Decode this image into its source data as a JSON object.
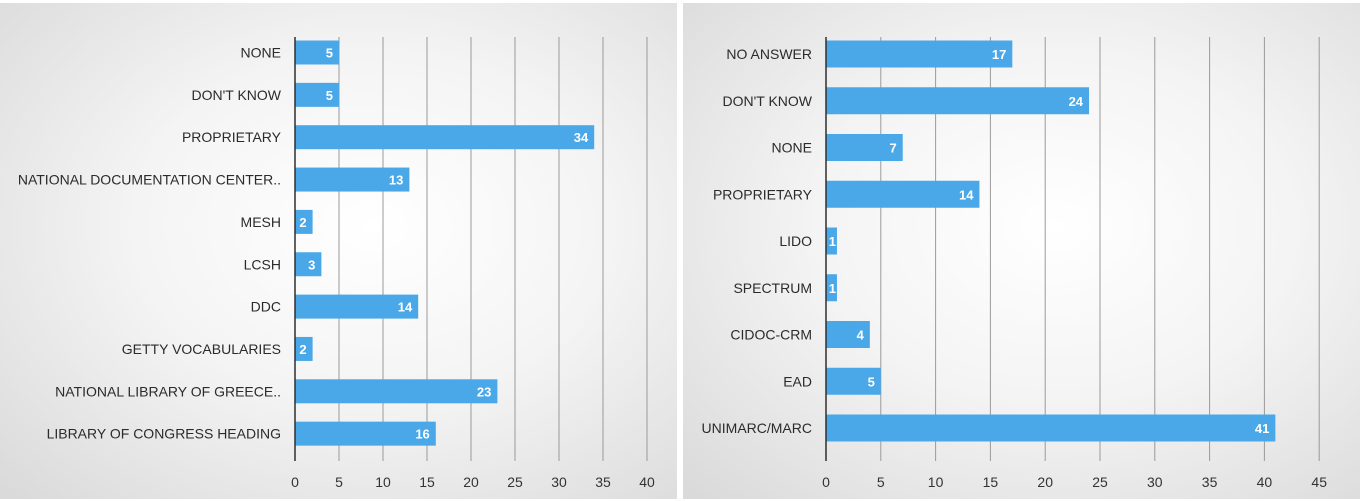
{
  "colors": {
    "bar": "#4aa8e8",
    "axis": "#2f2f2f",
    "grid": "#9a9a9a",
    "value_label": "#ffffff"
  },
  "chart_data": [
    {
      "type": "bar",
      "orientation": "horizontal",
      "title": "",
      "xlabel": "",
      "ylabel": "",
      "categories": [
        "NONE",
        "DON'T KNOW",
        "PROPRIETARY",
        "NATIONAL DOCUMENTATION CENTER..",
        "MESH",
        "LCSH",
        "DDC",
        "GETTY VOCABULARIES",
        "NATIONAL LIBRARY OF GREECE..",
        "LIBRARY OF CONGRESS HEADING"
      ],
      "values": [
        5,
        5,
        34,
        13,
        2,
        3,
        14,
        2,
        23,
        16
      ],
      "xlim": [
        0,
        40
      ],
      "xticks": [
        0,
        5,
        10,
        15,
        20,
        25,
        30,
        35,
        40
      ],
      "grid": true,
      "data_labels": true
    },
    {
      "type": "bar",
      "orientation": "horizontal",
      "title": "",
      "xlabel": "",
      "ylabel": "",
      "categories": [
        "NO ANSWER",
        "DON'T KNOW",
        "NONE",
        "PROPRIETARY",
        "LIDO",
        "SPECTRUM",
        "CIDOC-CRM",
        "EAD",
        "UNIMARC/MARC"
      ],
      "values": [
        17,
        24,
        7,
        14,
        1,
        1,
        4,
        5,
        41
      ],
      "xlim": [
        0,
        45
      ],
      "xticks": [
        0,
        5,
        10,
        15,
        20,
        25,
        30,
        35,
        40,
        45
      ],
      "grid": true,
      "data_labels": true
    }
  ]
}
